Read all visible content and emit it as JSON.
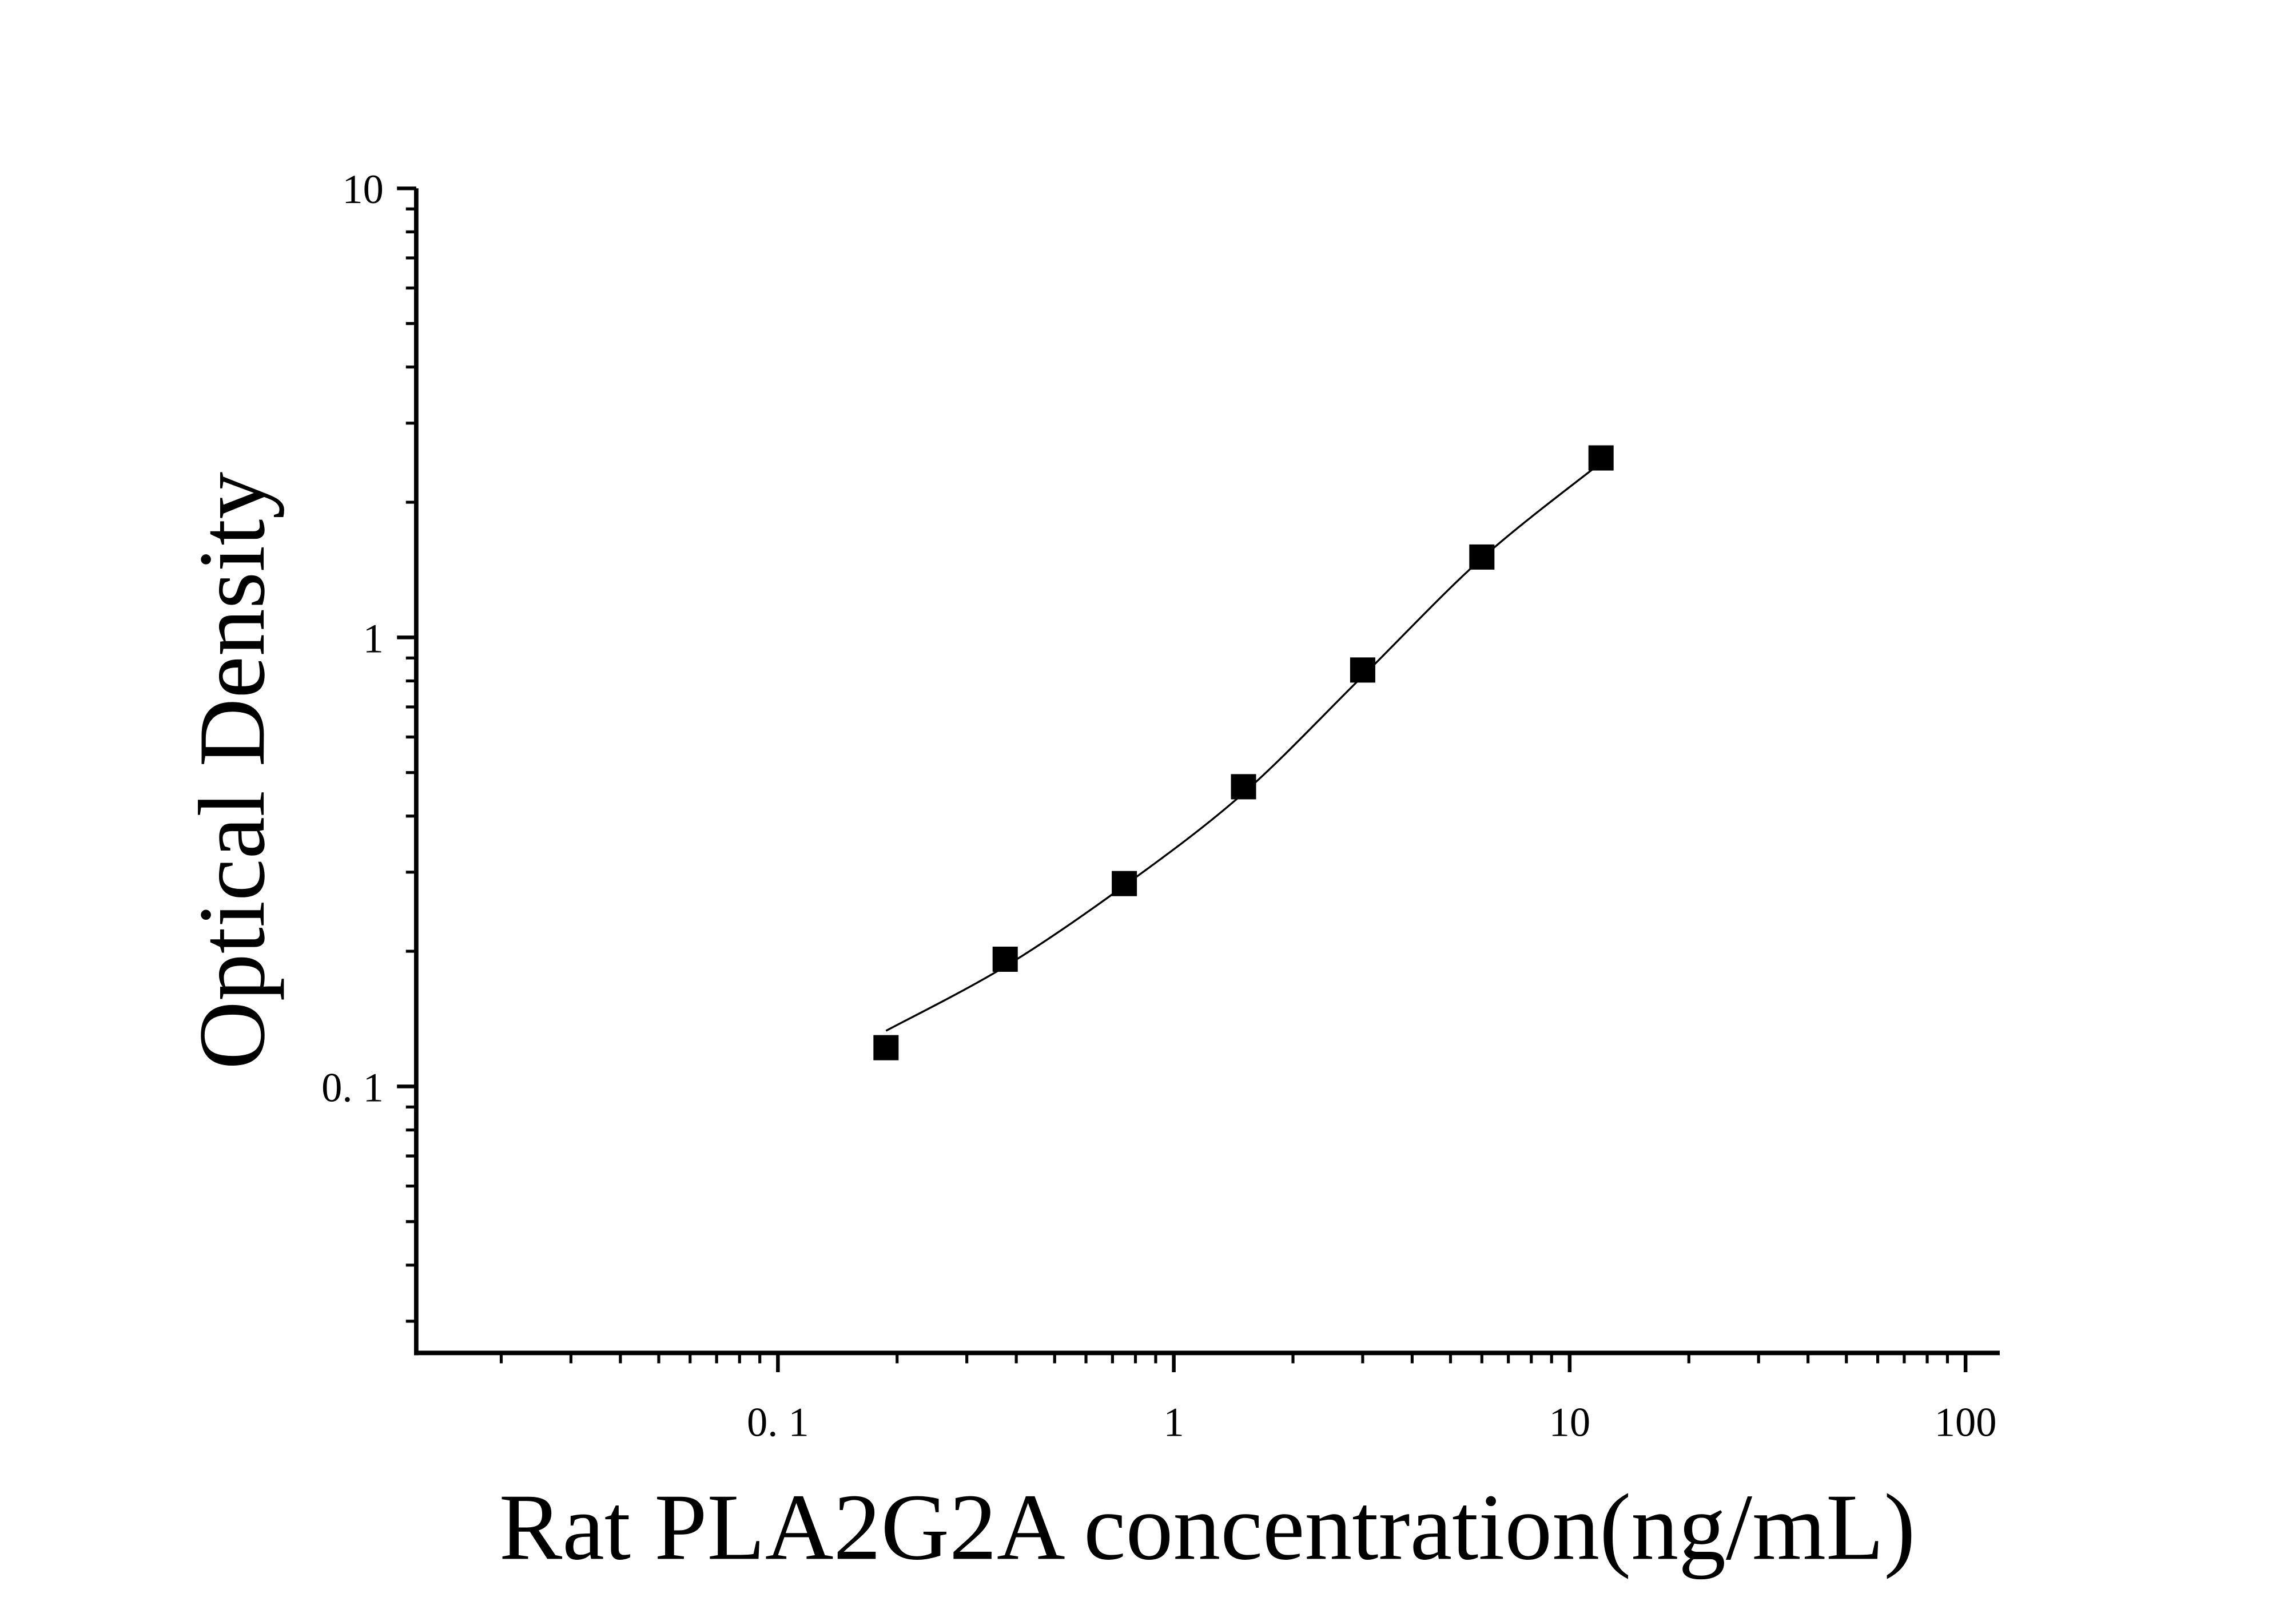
{
  "chart_data": {
    "type": "scatter",
    "x_label": "Rat PLA2G2A concentration(ng/mL)",
    "y_label": "Optical Density",
    "x_scale": "log",
    "y_scale": "log",
    "xlim": [
      0.0122,
      122
    ],
    "ylim": [
      0.0255,
      10
    ],
    "xticks": [
      {
        "value": 0.1,
        "label": "0. 1"
      },
      1,
      10,
      100
    ],
    "yticks": [
      {
        "value": 0.1,
        "label": "0. 1"
      },
      1,
      10
    ],
    "xminor": [
      0.02,
      0.03,
      0.04,
      0.05,
      0.06,
      0.07,
      0.08,
      0.09,
      0.2,
      0.3,
      0.4,
      0.5,
      0.6,
      0.7,
      0.8,
      0.9,
      2,
      3,
      4,
      5,
      6,
      7,
      8,
      9,
      20,
      30,
      40,
      50,
      60,
      70,
      80,
      90
    ],
    "yminor": [
      0.03,
      0.04,
      0.05,
      0.06,
      0.07,
      0.08,
      0.09,
      0.2,
      0.3,
      0.4,
      0.5,
      0.6,
      0.7,
      0.8,
      0.9,
      2,
      3,
      4,
      5,
      6,
      7,
      8,
      9
    ],
    "color": "#000000",
    "x": [
      0.1875,
      0.375,
      0.75,
      1.5,
      3,
      6,
      12
    ],
    "values": [
      0.122,
      0.192,
      0.283,
      0.465,
      0.846,
      1.51,
      2.51
    ],
    "fit": {
      "x": [
        0.1875,
        0.375,
        0.75,
        1.5,
        3,
        6,
        12
      ],
      "values": [
        0.133,
        0.185,
        0.28,
        0.45,
        0.82,
        1.5,
        2.45
      ]
    }
  }
}
